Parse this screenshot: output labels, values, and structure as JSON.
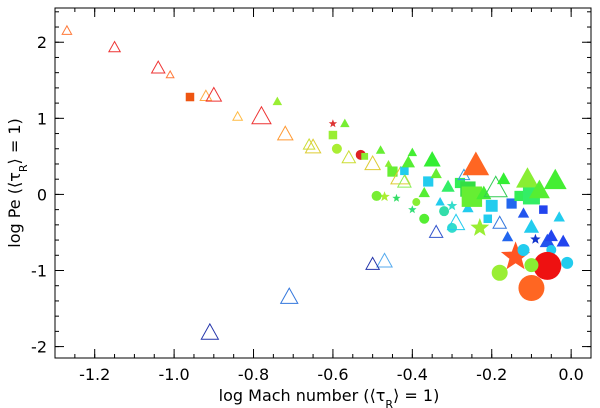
{
  "chart_data": {
    "type": "scatter",
    "title": "",
    "xlabel": "log Mach number (⟨τ_R⟩ = 1)",
    "ylabel": "log Pe (⟨τ_R⟩ = 1)",
    "xlabel_parts": [
      "log Mach number (⟨τ",
      "R",
      "⟩ = 1)"
    ],
    "ylabel_parts": [
      "log Pe (⟨τ",
      "R",
      "⟩ = 1)"
    ],
    "xlim": [
      -1.3,
      0.05
    ],
    "ylim": [
      -2.15,
      2.45
    ],
    "xticks": [
      -1.2,
      -1.0,
      -0.8,
      -0.6,
      -0.4,
      -0.2,
      0.0
    ],
    "xtick_labels": [
      "-1.2",
      "-1.0",
      "-0.8",
      "-0.6",
      "-0.4",
      "-0.2",
      "0.0"
    ],
    "yticks": [
      -2,
      -1,
      0,
      1,
      2
    ],
    "ytick_labels": [
      "-2",
      "-1",
      "0",
      "1",
      "2"
    ],
    "grid": false,
    "legend": "none",
    "marker_encoding": "marker shape and size vary per model; color varies per model (red to blue)",
    "points": [
      {
        "x": -1.27,
        "y": 2.15,
        "marker": "triangle-open",
        "size": 5,
        "color": "#ff7a3a"
      },
      {
        "x": -1.15,
        "y": 1.93,
        "marker": "triangle-open",
        "size": 6,
        "color": "#ee3333"
      },
      {
        "x": -1.04,
        "y": 1.66,
        "marker": "triangle-open",
        "size": 7,
        "color": "#ee3333"
      },
      {
        "x": -1.01,
        "y": 1.57,
        "marker": "triangle-open",
        "size": 4,
        "color": "#ff7a3a"
      },
      {
        "x": -0.96,
        "y": 1.28,
        "marker": "square",
        "size": 5,
        "color": "#ee5511"
      },
      {
        "x": -0.92,
        "y": 1.29,
        "marker": "triangle-open",
        "size": 6,
        "color": "#ffaa44"
      },
      {
        "x": -0.9,
        "y": 1.3,
        "marker": "triangle-open",
        "size": 8,
        "color": "#ee3333"
      },
      {
        "x": -0.84,
        "y": 1.02,
        "marker": "triangle-open",
        "size": 5,
        "color": "#ffbb44"
      },
      {
        "x": -0.78,
        "y": 1.02,
        "marker": "triangle-open",
        "size": 10,
        "color": "#ee3333"
      },
      {
        "x": -0.74,
        "y": 1.22,
        "marker": "triangle-filled",
        "size": 5,
        "color": "#99ee33"
      },
      {
        "x": -0.72,
        "y": 0.79,
        "marker": "triangle-open",
        "size": 8,
        "color": "#ff9933"
      },
      {
        "x": -0.66,
        "y": 0.65,
        "marker": "triangle-open",
        "size": 6,
        "color": "#ccdd33"
      },
      {
        "x": -0.65,
        "y": 0.62,
        "marker": "triangle-open",
        "size": 8,
        "color": "#ddcc33"
      },
      {
        "x": -0.6,
        "y": 0.93,
        "marker": "star-filled",
        "size": 4,
        "color": "#dd3333"
      },
      {
        "x": -0.6,
        "y": 0.78,
        "marker": "square",
        "size": 5,
        "color": "#99ee33"
      },
      {
        "x": -0.59,
        "y": 0.6,
        "marker": "circle-filled",
        "size": 5,
        "color": "#aaee33"
      },
      {
        "x": -0.57,
        "y": 0.93,
        "marker": "triangle-filled",
        "size": 5,
        "color": "#77ee33"
      },
      {
        "x": -0.56,
        "y": 0.48,
        "marker": "triangle-open",
        "size": 7,
        "color": "#ccdd33"
      },
      {
        "x": -0.53,
        "y": 0.52,
        "marker": "circle-filled",
        "size": 5,
        "color": "#dd2222"
      },
      {
        "x": -0.52,
        "y": 0.5,
        "marker": "square",
        "size": 4,
        "color": "#88ee33"
      },
      {
        "x": -0.5,
        "y": 0.4,
        "marker": "triangle-open",
        "size": 8,
        "color": "#ddcc33"
      },
      {
        "x": -0.48,
        "y": 0.58,
        "marker": "triangle-filled",
        "size": 5,
        "color": "#66ee33"
      },
      {
        "x": -0.46,
        "y": 0.4,
        "marker": "triangle-filled",
        "size": 4,
        "color": "#88ee33"
      },
      {
        "x": -0.45,
        "y": 0.3,
        "marker": "square",
        "size": 6,
        "color": "#66ee33"
      },
      {
        "x": -0.43,
        "y": 0.23,
        "marker": "triangle-open",
        "size": 10,
        "color": "#ddcc33"
      },
      {
        "x": -0.42,
        "y": 0.31,
        "marker": "square",
        "size": 5,
        "color": "#22ccee"
      },
      {
        "x": -0.42,
        "y": 0.16,
        "marker": "triangle-open",
        "size": 7,
        "color": "#88ee55"
      },
      {
        "x": -0.41,
        "y": 0.42,
        "marker": "triangle-filled",
        "size": 7,
        "color": "#55ee33"
      },
      {
        "x": -0.4,
        "y": 0.55,
        "marker": "triangle-filled",
        "size": 5,
        "color": "#44ee33"
      },
      {
        "x": -0.47,
        "y": -0.03,
        "marker": "star-filled",
        "size": 5,
        "color": "#aaee33"
      },
      {
        "x": -0.49,
        "y": -0.02,
        "marker": "circle-filled",
        "size": 5,
        "color": "#77ee33"
      },
      {
        "x": -0.44,
        "y": -0.05,
        "marker": "star-filled",
        "size": 4,
        "color": "#33dd66"
      },
      {
        "x": -0.4,
        "y": -0.2,
        "marker": "star-filled",
        "size": 4,
        "color": "#33dd77"
      },
      {
        "x": -0.39,
        "y": -0.1,
        "marker": "circle-filled",
        "size": 4,
        "color": "#88ee33"
      },
      {
        "x": -0.37,
        "y": 0.02,
        "marker": "triangle-filled",
        "size": 6,
        "color": "#55ee33"
      },
      {
        "x": -0.37,
        "y": -0.32,
        "marker": "circle-filled",
        "size": 5,
        "color": "#55ee33"
      },
      {
        "x": -0.36,
        "y": 0.17,
        "marker": "square",
        "size": 6,
        "color": "#22ccee"
      },
      {
        "x": -0.35,
        "y": 0.45,
        "marker": "triangle-filled",
        "size": 9,
        "color": "#33ee33"
      },
      {
        "x": -0.34,
        "y": 0.27,
        "marker": "triangle-filled",
        "size": 6,
        "color": "#66ee33"
      },
      {
        "x": -0.33,
        "y": -0.1,
        "marker": "triangle-filled",
        "size": 5,
        "color": "#22ccee"
      },
      {
        "x": -0.32,
        "y": -0.22,
        "marker": "circle-filled",
        "size": 5,
        "color": "#33ddaa"
      },
      {
        "x": -0.31,
        "y": 0.1,
        "marker": "triangle-filled",
        "size": 7,
        "color": "#33ee66"
      },
      {
        "x": -0.3,
        "y": -0.15,
        "marker": "star-filled",
        "size": 5,
        "color": "#33ddcc"
      },
      {
        "x": -0.3,
        "y": -0.44,
        "marker": "circle-filled",
        "size": 5,
        "color": "#33ddcc"
      },
      {
        "x": -0.29,
        "y": -0.38,
        "marker": "triangle-open",
        "size": 9,
        "color": "#22ccee"
      },
      {
        "x": -0.28,
        "y": 0.15,
        "marker": "square",
        "size": 6,
        "color": "#33ee55"
      },
      {
        "x": -0.27,
        "y": 0.25,
        "marker": "triangle-open",
        "size": 6,
        "color": "#3399dd"
      },
      {
        "x": -0.26,
        "y": 0.07,
        "marker": "square",
        "size": 9,
        "color": "#33dd44"
      },
      {
        "x": -0.26,
        "y": -0.18,
        "marker": "triangle-filled",
        "size": 6,
        "color": "#22ccee"
      },
      {
        "x": -0.25,
        "y": -0.03,
        "marker": "square",
        "size": 12,
        "color": "#66ee33"
      },
      {
        "x": -0.24,
        "y": 0.38,
        "marker": "triangle-filled",
        "size": 14,
        "color": "#ff6622"
      },
      {
        "x": -0.23,
        "y": -0.44,
        "marker": "star-filled",
        "size": 9,
        "color": "#99ee33"
      },
      {
        "x": -0.22,
        "y": 0.01,
        "marker": "triangle-filled",
        "size": 8,
        "color": "#44ee33"
      },
      {
        "x": -0.21,
        "y": -0.32,
        "marker": "square",
        "size": 5,
        "color": "#22ccee"
      },
      {
        "x": -0.2,
        "y": -0.15,
        "marker": "square",
        "size": 7,
        "color": "#22ccee"
      },
      {
        "x": -0.19,
        "y": 0.08,
        "marker": "triangle-open",
        "size": 12,
        "color": "#33cc55"
      },
      {
        "x": -0.18,
        "y": -0.38,
        "marker": "triangle-open",
        "size": 7,
        "color": "#3377dd"
      },
      {
        "x": -0.17,
        "y": 0.2,
        "marker": "triangle-filled",
        "size": 7,
        "color": "#33ee33"
      },
      {
        "x": -0.16,
        "y": -0.56,
        "marker": "triangle-filled",
        "size": 6,
        "color": "#2266ee"
      },
      {
        "x": -0.15,
        "y": -0.12,
        "marker": "square",
        "size": 6,
        "color": "#2266ee"
      },
      {
        "x": -0.14,
        "y": -0.82,
        "marker": "star-filled",
        "size": 14,
        "color": "#ff5522"
      },
      {
        "x": -0.13,
        "y": -0.02,
        "marker": "square",
        "size": 6,
        "color": "#33ee55"
      },
      {
        "x": -0.12,
        "y": -0.25,
        "marker": "triangle-filled",
        "size": 6,
        "color": "#2255ee"
      },
      {
        "x": -0.11,
        "y": 0.2,
        "marker": "triangle-filled",
        "size": 12,
        "color": "#88ee33"
      },
      {
        "x": -0.1,
        "y": -0.43,
        "marker": "triangle-filled",
        "size": 8,
        "color": "#22ccee"
      },
      {
        "x": -0.1,
        "y": -0.02,
        "marker": "square",
        "size": 10,
        "color": "#33ee66"
      },
      {
        "x": -0.09,
        "y": -0.59,
        "marker": "star-filled",
        "size": 5,
        "color": "#1133cc"
      },
      {
        "x": -0.08,
        "y": 0.05,
        "marker": "triangle-filled",
        "size": 11,
        "color": "#55ee33"
      },
      {
        "x": -0.07,
        "y": -0.2,
        "marker": "square",
        "size": 5,
        "color": "#2244ee"
      },
      {
        "x": -0.06,
        "y": -0.62,
        "marker": "triangle-filled",
        "size": 8,
        "color": "#2255ee"
      },
      {
        "x": -0.05,
        "y": -0.73,
        "marker": "circle-filled",
        "size": 5,
        "color": "#22ccee"
      },
      {
        "x": -0.05,
        "y": -0.55,
        "marker": "triangle-filled",
        "size": 7,
        "color": "#2244ee"
      },
      {
        "x": -0.04,
        "y": 0.18,
        "marker": "triangle-filled",
        "size": 12,
        "color": "#44ee33"
      },
      {
        "x": -0.03,
        "y": -0.3,
        "marker": "triangle-filled",
        "size": 6,
        "color": "#22ccee"
      },
      {
        "x": -0.02,
        "y": -0.62,
        "marker": "triangle-filled",
        "size": 7,
        "color": "#2244ee"
      },
      {
        "x": -0.01,
        "y": -0.9,
        "marker": "circle-filled",
        "size": 6,
        "color": "#22ccee"
      },
      {
        "x": -0.06,
        "y": -0.94,
        "marker": "circle-filled",
        "size": 14,
        "color": "#ee1111"
      },
      {
        "x": -0.1,
        "y": -1.23,
        "marker": "circle-filled",
        "size": 13,
        "color": "#ff6622"
      },
      {
        "x": -0.1,
        "y": -0.93,
        "marker": "circle-filled",
        "size": 7,
        "color": "#88ee33"
      },
      {
        "x": -0.18,
        "y": -1.03,
        "marker": "circle-filled",
        "size": 8,
        "color": "#99ee33"
      },
      {
        "x": -0.12,
        "y": -0.73,
        "marker": "circle-filled",
        "size": 6,
        "color": "#22ccee"
      },
      {
        "x": -0.47,
        "y": -0.88,
        "marker": "triangle-open",
        "size": 8,
        "color": "#55aaee"
      },
      {
        "x": -0.5,
        "y": -0.92,
        "marker": "triangle-open",
        "size": 7,
        "color": "#2233aa"
      },
      {
        "x": -0.71,
        "y": -1.35,
        "marker": "triangle-open",
        "size": 9,
        "color": "#3377dd"
      },
      {
        "x": -0.91,
        "y": -1.82,
        "marker": "triangle-open",
        "size": 9,
        "color": "#2233aa"
      },
      {
        "x": -0.34,
        "y": -0.5,
        "marker": "triangle-open",
        "size": 7,
        "color": "#3355cc"
      }
    ]
  }
}
